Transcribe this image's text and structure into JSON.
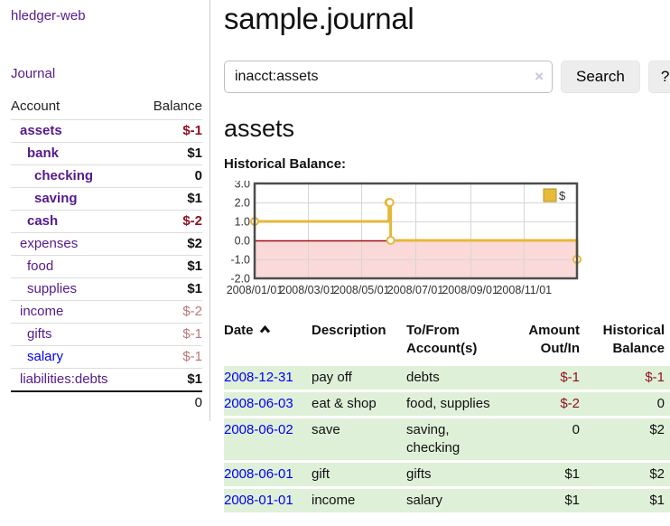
{
  "app": {
    "brand": "hledger-web",
    "nav_journal": "Journal"
  },
  "sidebar": {
    "header": {
      "account": "Account",
      "balance": "Balance"
    },
    "accounts": [
      {
        "name": "assets",
        "balance": "$-1",
        "indent": 0,
        "bold": true,
        "balance_style": "neg_strong",
        "link_style": "visited"
      },
      {
        "name": "bank",
        "balance": "$1",
        "indent": 1,
        "bold": true,
        "balance_style": "pos",
        "link_style": "visited"
      },
      {
        "name": "checking",
        "balance": "0",
        "indent": 2,
        "bold": true,
        "balance_style": "pos",
        "link_style": "visited"
      },
      {
        "name": "saving",
        "balance": "$1",
        "indent": 2,
        "bold": true,
        "balance_style": "pos",
        "link_style": "visited"
      },
      {
        "name": "cash",
        "balance": "$-2",
        "indent": 1,
        "bold": true,
        "balance_style": "neg_strong",
        "link_style": "visited"
      },
      {
        "name": "expenses",
        "balance": "$2",
        "indent": 0,
        "bold": false,
        "balance_style": "pos",
        "link_style": "visited"
      },
      {
        "name": "food",
        "balance": "$1",
        "indent": 1,
        "bold": false,
        "balance_style": "pos",
        "link_style": "visited"
      },
      {
        "name": "supplies",
        "balance": "$1",
        "indent": 1,
        "bold": false,
        "balance_style": "pos",
        "link_style": "visited"
      },
      {
        "name": "income",
        "balance": "$-2",
        "indent": 0,
        "bold": false,
        "balance_style": "neg_muted",
        "link_style": "visited"
      },
      {
        "name": "gifts",
        "balance": "$-1",
        "indent": 1,
        "bold": false,
        "balance_style": "neg_muted",
        "link_style": "visited"
      },
      {
        "name": "salary",
        "balance": "$-1",
        "indent": 1,
        "bold": false,
        "balance_style": "neg_muted",
        "link_style": "unvisited"
      },
      {
        "name": "liabilities:debts",
        "balance": "$1",
        "indent": 0,
        "bold": false,
        "balance_style": "pos",
        "link_style": "visited"
      }
    ],
    "total": "0"
  },
  "header": {
    "title": "sample.journal"
  },
  "search": {
    "value": "inacct:assets",
    "clear_icon": "×",
    "button_label": "Search",
    "help_label": "?"
  },
  "account_page": {
    "heading": "assets",
    "chart_label": "Historical Balance:"
  },
  "chart_data": {
    "type": "line",
    "step": true,
    "title": "Historical Balance:",
    "series": [
      {
        "name": "$",
        "points": [
          [
            "2008-01-01",
            1
          ],
          [
            "2008-06-01",
            2
          ],
          [
            "2008-06-02",
            2
          ],
          [
            "2008-06-03",
            0
          ],
          [
            "2008-12-31",
            -1
          ]
        ]
      }
    ],
    "xdomain": [
      "2008-01-01",
      "2008-12-31"
    ],
    "ylim": [
      -2,
      3
    ],
    "yticks": [
      3,
      2,
      1,
      0,
      -1,
      -2
    ],
    "ytick_labels": [
      "3.0",
      "2.0",
      "1.0",
      "0.0",
      "-1.0",
      "-2.0"
    ],
    "xticks": [
      {
        "date": "2008-01-01",
        "label": "2008/01/01"
      },
      {
        "date": "2008-03-01",
        "label": "2008/03/01"
      },
      {
        "date": "2008-05-01",
        "label": "2008/05/01"
      },
      {
        "date": "2008-07-01",
        "label": "2008/07/01"
      },
      {
        "date": "2008-09-01",
        "label": "2008/09/01"
      },
      {
        "date": "2008-11-01",
        "label": "2008/11/01"
      }
    ],
    "legend_position": "top-right",
    "grid": true,
    "colors": {
      "line": "#e5b73b",
      "marker_fill": "#ffffff",
      "negative_region": "#fbd9d9",
      "zero_line": "#9c1016",
      "grid": "#d6d6d6",
      "border": "#4d4d4d",
      "legend_fill": "#e8bb37",
      "legend_border": "#b8922a",
      "tick_text": "#333333"
    }
  },
  "register": {
    "columns": [
      "Date",
      "Description",
      "To/From Account(s)",
      "Amount Out/In",
      "Historical Balance"
    ],
    "rows": [
      {
        "date": "2008-12-31",
        "description": "pay off",
        "accounts": "debts",
        "amount": "$-1",
        "amount_negative": true,
        "balance": "$-1",
        "balance_negative": true
      },
      {
        "date": "2008-06-03",
        "description": "eat & shop",
        "accounts": "food, supplies",
        "amount": "$-2",
        "amount_negative": true,
        "balance": "0",
        "balance_negative": false
      },
      {
        "date": "2008-06-02",
        "description": "save",
        "accounts": "saving, checking",
        "amount": "0",
        "amount_negative": false,
        "balance": "$2",
        "balance_negative": false
      },
      {
        "date": "2008-06-01",
        "description": "gift",
        "accounts": "gifts",
        "amount": "$1",
        "amount_negative": false,
        "balance": "$2",
        "balance_negative": false
      },
      {
        "date": "2008-01-01",
        "description": "income",
        "accounts": "salary",
        "amount": "$1",
        "amount_negative": false,
        "balance": "$1",
        "balance_negative": false
      }
    ]
  }
}
